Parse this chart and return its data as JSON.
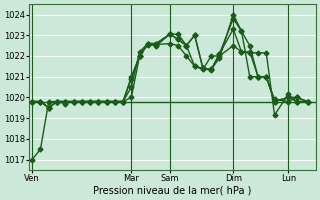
{
  "bg_color": "#cce8d8",
  "grid_color": "#b8d8c8",
  "line_color": "#1a5c1a",
  "ylim": [
    1016.5,
    1024.5
  ],
  "yticks": [
    1017,
    1018,
    1019,
    1020,
    1021,
    1022,
    1023,
    1024
  ],
  "xlabel": "Pression niveau de la mer( hPa )",
  "day_labels": [
    "Ven",
    "Mar",
    "Sam",
    "Dim",
    "Lun"
  ],
  "day_positions": [
    0.0,
    0.36,
    0.5,
    0.73,
    0.93
  ],
  "vline_positions": [
    0.0,
    0.36,
    0.5,
    0.73,
    0.93
  ],
  "hline_y": 1019.8,
  "series1_x": [
    0.0,
    0.03,
    0.06,
    0.09,
    0.12,
    0.15,
    0.18,
    0.21,
    0.24,
    0.27,
    0.3,
    0.33,
    0.36,
    0.39,
    0.42,
    0.45,
    0.5,
    0.53,
    0.56,
    0.59,
    0.62,
    0.65,
    0.68,
    0.73,
    0.76,
    0.79,
    0.82,
    0.85,
    0.88,
    0.93,
    0.96,
    1.0
  ],
  "series1_y": [
    1017.0,
    1017.5,
    1019.8,
    1019.8,
    1019.7,
    1019.8,
    1019.8,
    1019.8,
    1019.8,
    1019.8,
    1019.8,
    1019.8,
    1020.9,
    1022.0,
    1022.55,
    1022.5,
    1023.05,
    1022.8,
    1022.5,
    1021.5,
    1021.4,
    1021.3,
    1022.1,
    1023.3,
    1022.2,
    1022.2,
    1021.0,
    1021.0,
    1019.9,
    1019.8,
    1020.0,
    1019.8
  ],
  "series2_x": [
    0.0,
    0.03,
    0.06,
    0.09,
    0.12,
    0.15,
    0.18,
    0.21,
    0.24,
    0.27,
    0.3,
    0.33,
    0.36,
    0.39,
    0.42,
    0.45,
    0.5,
    0.53,
    0.56,
    0.59,
    0.62,
    0.65,
    0.68,
    0.73,
    0.76,
    0.79,
    0.82,
    0.85,
    0.88,
    0.93,
    0.96,
    1.0
  ],
  "series2_y": [
    1019.8,
    1019.8,
    1019.5,
    1019.8,
    1019.8,
    1019.8,
    1019.8,
    1019.8,
    1019.8,
    1019.8,
    1019.8,
    1019.8,
    1021.0,
    1022.0,
    1022.6,
    1022.55,
    1022.6,
    1022.5,
    1022.0,
    1021.5,
    1021.35,
    1022.0,
    1022.0,
    1022.5,
    1022.2,
    1022.15,
    1022.15,
    1022.15,
    1019.15,
    1020.15,
    1019.8,
    1019.8
  ],
  "series3_x": [
    0.0,
    0.03,
    0.06,
    0.09,
    0.12,
    0.15,
    0.18,
    0.21,
    0.24,
    0.27,
    0.3,
    0.33,
    0.36,
    0.39,
    0.42,
    0.45,
    0.5,
    0.53,
    0.56,
    0.59,
    0.62,
    0.65,
    0.68,
    0.73,
    0.76,
    0.79,
    0.82,
    0.85,
    0.88,
    0.93,
    0.96,
    1.0
  ],
  "series3_y": [
    1019.8,
    1019.8,
    1019.5,
    1019.8,
    1019.8,
    1019.8,
    1019.8,
    1019.8,
    1019.8,
    1019.8,
    1019.8,
    1019.8,
    1020.0,
    1022.0,
    1022.6,
    1022.6,
    1023.05,
    1022.8,
    1022.5,
    1023.0,
    1021.4,
    1021.35,
    1021.9,
    1024.0,
    1023.2,
    1022.5,
    1021.0,
    1021.0,
    1019.8,
    1020.0,
    1019.8,
    1019.8
  ],
  "series4_x": [
    0.0,
    0.03,
    0.06,
    0.09,
    0.12,
    0.15,
    0.18,
    0.21,
    0.24,
    0.27,
    0.3,
    0.33,
    0.36,
    0.39,
    0.42,
    0.45,
    0.5,
    0.53,
    0.56,
    0.59,
    0.62,
    0.65,
    0.68,
    0.73,
    0.76,
    0.79,
    0.82,
    0.85,
    0.88,
    0.93,
    0.96,
    1.0
  ],
  "series4_y": [
    1019.8,
    1019.8,
    1019.5,
    1019.8,
    1019.8,
    1019.8,
    1019.8,
    1019.8,
    1019.8,
    1019.8,
    1019.8,
    1019.8,
    1020.5,
    1022.2,
    1022.6,
    1022.6,
    1023.05,
    1023.05,
    1022.5,
    1023.0,
    1021.4,
    1021.35,
    1022.1,
    1023.8,
    1023.2,
    1021.0,
    1021.0,
    1021.0,
    1019.8,
    1020.0,
    1020.0,
    1019.8
  ],
  "marker": "D",
  "markersize": 2.5,
  "linewidth": 1.0
}
